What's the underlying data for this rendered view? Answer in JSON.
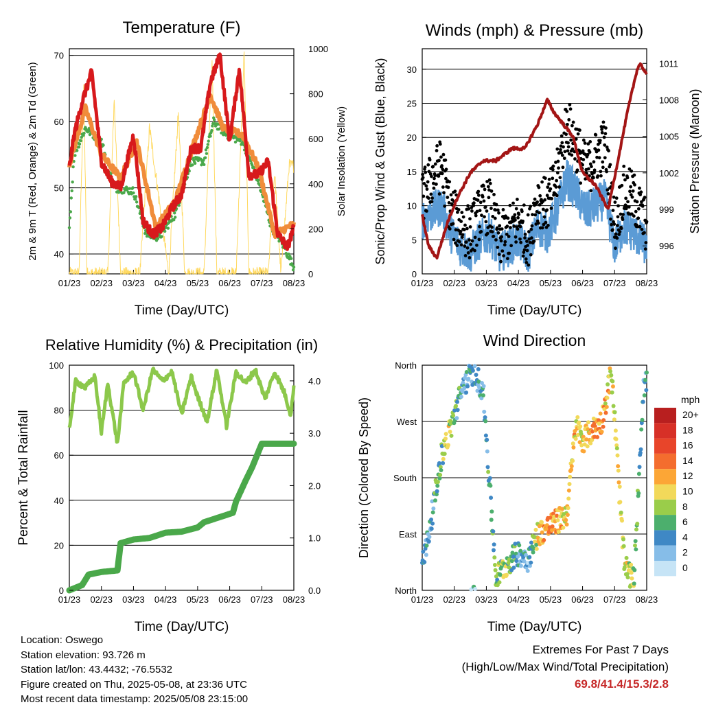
{
  "chart_data": [
    {
      "type": "line",
      "title": "Temperature (F)",
      "xlabel": "Time (Day/UTC)",
      "ylabel": "2m & 9m T (Red, Orange) & 2m Td (Green)",
      "y2label": "Solar Insolation (Yellow)",
      "xticks": [
        "01/23",
        "02/23",
        "03/23",
        "04/23",
        "05/23",
        "06/23",
        "07/23",
        "08/23"
      ],
      "ylim": [
        37,
        71
      ],
      "yticks": [
        40,
        50,
        60,
        70
      ],
      "y2lim": [
        0,
        1000
      ],
      "y2ticks": [
        0,
        200,
        400,
        600,
        800,
        1000
      ],
      "grid": true,
      "series": [
        {
          "name": "2m T",
          "color": "#d7191c",
          "x": [
            0,
            0.15,
            0.4,
            0.7,
            1.0,
            1.3,
            1.6,
            2.0,
            2.3,
            2.6,
            2.9,
            3.2,
            3.5,
            3.8,
            4.1,
            4.4,
            4.7,
            5.0,
            5.3,
            5.6,
            5.9,
            6.2,
            6.5,
            6.8,
            7.0
          ],
          "values": [
            53,
            58,
            63,
            67.5,
            54,
            51,
            50,
            58,
            45,
            43,
            44,
            47,
            49,
            56,
            56,
            66,
            70,
            57,
            68,
            52,
            52,
            54,
            43,
            41,
            44
          ]
        },
        {
          "name": "9m T",
          "color": "#f08c3a",
          "x": [
            0,
            0.5,
            1.0,
            1.6,
            2.1,
            2.7,
            3.3,
            3.9,
            4.4,
            4.8,
            5.4,
            5.9,
            6.4,
            7.0
          ],
          "values": [
            53.5,
            62,
            55,
            51.5,
            57,
            44,
            48,
            57,
            64,
            59,
            58,
            53,
            43,
            44.5
          ]
        },
        {
          "name": "2m Td",
          "color": "#4aa84a",
          "x": [
            0,
            0.15,
            0.5,
            1.0,
            1.4,
            2.0,
            2.4,
            2.8,
            3.3,
            3.8,
            4.2,
            4.5,
            4.9,
            5.4,
            5.9,
            6.3,
            6.6,
            7.0
          ],
          "values": [
            44,
            55,
            59,
            57,
            50,
            49.5,
            43,
            42.5,
            46,
            54,
            54,
            60,
            58,
            57,
            51,
            44,
            42,
            38
          ]
        },
        {
          "name": "Solar Insolation",
          "color": "#ffd54f",
          "axis": "y2",
          "x": [
            0.3,
            0.45,
            0.55,
            1.2,
            1.4,
            1.6,
            2.2,
            2.5,
            3.1,
            3.4,
            3.6,
            4.2,
            4.45,
            4.6,
            5.2,
            5.45,
            5.6,
            6.2,
            6.4,
            6.6,
            6.85
          ],
          "values": [
            0,
            820,
            0,
            0,
            780,
            0,
            0,
            650,
            0,
            720,
            0,
            0,
            950,
            0,
            0,
            980,
            0,
            0,
            450,
            0,
            480
          ]
        }
      ]
    },
    {
      "type": "scatter",
      "title": "Winds (mph) & Pressure (mb)",
      "xlabel": "Time (Day/UTC)",
      "ylabel": "Sonic/Prop Wind & Gust (Blue, Black)",
      "y2label": "Station Pressure (Maroon)",
      "xticks": [
        "01/23",
        "02/23",
        "03/23",
        "04/23",
        "05/23",
        "06/23",
        "07/23",
        "08/23"
      ],
      "ylim": [
        0,
        33
      ],
      "yticks": [
        0,
        5,
        10,
        15,
        20,
        25,
        30
      ],
      "y2lim": [
        993.7,
        1012.2
      ],
      "y2ticks": [
        996,
        999,
        1002,
        1005,
        1008,
        1011
      ],
      "grid": true,
      "series": [
        {
          "name": "Wind",
          "color": "#5b9bd5",
          "x": [
            0,
            0.3,
            0.6,
            0.9,
            1.2,
            1.5,
            1.8,
            2.1,
            2.4,
            2.7,
            3.0,
            3.3,
            3.6,
            3.9,
            4.2,
            4.5,
            4.8,
            5.1,
            5.4,
            5.7,
            6.0,
            6.3,
            6.6,
            7.0
          ],
          "values": [
            8,
            9,
            10,
            6,
            4,
            3,
            5,
            6,
            3,
            4,
            5,
            3,
            7,
            6,
            9,
            14,
            12,
            9,
            10,
            11,
            4,
            7,
            6,
            4
          ]
        },
        {
          "name": "Gust",
          "color": "#000000",
          "x": [
            0,
            0.3,
            0.6,
            0.9,
            1.2,
            1.5,
            1.8,
            2.1,
            2.4,
            2.7,
            3.0,
            3.3,
            3.6,
            3.9,
            4.2,
            4.5,
            4.8,
            5.1,
            5.4,
            5.7,
            6.0,
            6.3,
            6.6,
            7.0
          ],
          "values": [
            11,
            14,
            16,
            9,
            7,
            6,
            9,
            10,
            5,
            6,
            8,
            5,
            11,
            10,
            14,
            22,
            19,
            15,
            17,
            19,
            7,
            12,
            11,
            7
          ]
        },
        {
          "name": "Station Pressure",
          "color": "#a31515",
          "axis": "y2",
          "x": [
            0,
            0.2,
            0.45,
            0.8,
            1.1,
            1.5,
            1.9,
            2.3,
            2.8,
            3.2,
            3.6,
            3.9,
            4.1,
            4.4,
            4.7,
            5.0,
            5.4,
            5.8,
            6.1,
            6.4,
            6.7,
            6.8,
            7.0
          ],
          "values": [
            998.5,
            996,
            995,
            998,
            1000,
            1002,
            1003,
            1003,
            1004,
            1004,
            1006,
            1008,
            1007,
            1006,
            1005,
            1002,
            1001,
            999,
            1003,
            1007,
            1010.5,
            1011,
            1010
          ]
        }
      ]
    },
    {
      "type": "line",
      "title": "Relative Humidity (%) & Precipitation (in)",
      "xlabel": "Time (Day/UTC)",
      "ylabel": "Percent & Total Rainfall",
      "xticks": [
        "01/23",
        "02/23",
        "03/23",
        "04/23",
        "05/23",
        "06/23",
        "07/23",
        "08/23"
      ],
      "ylim": [
        0,
        100
      ],
      "yticks": [
        0,
        20,
        40,
        60,
        80,
        100
      ],
      "y2lim": [
        0,
        4.3
      ],
      "y2ticks": [
        "0.0",
        "1.0",
        "2.0",
        "3.0",
        "4.0"
      ],
      "grid": true,
      "series": [
        {
          "name": "Relative Humidity",
          "color": "#8cc84b",
          "x": [
            0,
            0.2,
            0.5,
            0.8,
            1.0,
            1.2,
            1.5,
            1.7,
            2.0,
            2.3,
            2.6,
            2.9,
            3.2,
            3.5,
            3.8,
            4.0,
            4.3,
            4.6,
            4.9,
            5.2,
            5.5,
            5.8,
            6.1,
            6.4,
            6.7,
            6.9,
            7.0
          ],
          "values": [
            72,
            93,
            90,
            95,
            70,
            92,
            65,
            92,
            97,
            80,
            98,
            93,
            97,
            78,
            95,
            86,
            75,
            98,
            73,
            97,
            92,
            98,
            85,
            97,
            88,
            78,
            90
          ]
        },
        {
          "name": "Total Rainfall",
          "color": "#4aa84a",
          "axis": "y2",
          "x": [
            0,
            0.4,
            0.6,
            1.0,
            1.5,
            1.6,
            2.0,
            2.5,
            3.0,
            3.5,
            4.0,
            4.2,
            4.8,
            5.1,
            5.2,
            5.5,
            5.7,
            6.0,
            6.5,
            7.0
          ],
          "values": [
            0,
            0.1,
            0.3,
            0.35,
            0.38,
            0.9,
            0.97,
            1.0,
            1.1,
            1.12,
            1.2,
            1.3,
            1.42,
            1.48,
            1.7,
            2.1,
            2.35,
            2.8,
            2.8,
            2.8
          ]
        }
      ]
    },
    {
      "type": "scatter",
      "title": "Wind Direction",
      "xlabel": "Time (Day/UTC)",
      "ylabel": "Direction (Colored By Speed)",
      "xticks": [
        "01/23",
        "02/23",
        "03/23",
        "04/23",
        "05/23",
        "06/23",
        "07/23",
        "08/23"
      ],
      "yticks": [
        "North",
        "East",
        "South",
        "West",
        "North"
      ],
      "ylim": [
        0,
        360
      ],
      "grid": true,
      "legend_title": "mph",
      "colorbar_labels": [
        "20+",
        "18",
        "16",
        "14",
        "12",
        "10",
        "8",
        "6",
        "4",
        "2",
        "0"
      ],
      "colorbar_colors": [
        "#b81f1f",
        "#d73027",
        "#e8452a",
        "#f46d2e",
        "#fca636",
        "#f2d95a",
        "#9acd4a",
        "#4caf6d",
        "#3f88c5",
        "#86bde8",
        "#c6e4f6"
      ],
      "series": [
        {
          "name": "Direction",
          "x": [
            0.1,
            0.4,
            0.6,
            0.8,
            1.0,
            1.3,
            1.6,
            1.9,
            2.3,
            2.6,
            3.0,
            3.3,
            3.6,
            3.9,
            4.2,
            4.5,
            4.8,
            5.0,
            5.3,
            5.6,
            5.9,
            6.3,
            6.6,
            6.9
          ],
          "values": [
            60,
            150,
            215,
            245,
            280,
            330,
            350,
            320,
            20,
            40,
            60,
            50,
            90,
            100,
            110,
            120,
            265,
            240,
            255,
            270,
            350,
            40,
            15,
            330
          ],
          "speeds": [
            4,
            5,
            6,
            10,
            6,
            4,
            3,
            4,
            6,
            8,
            4,
            3,
            10,
            14,
            12,
            10,
            11,
            9,
            12,
            12,
            10,
            10,
            8,
            4
          ]
        }
      ]
    }
  ],
  "info": {
    "location": "Location: Oswego",
    "elevation": "Station elevation: 93.726 m",
    "latlon": "Station lat/lon: 43.4432; -76.5532",
    "created": "Figure created on Thu, 2025-05-08, at 23:36 UTC",
    "timestamp": "Most recent data timestamp: 2025/05/08 23:15:00"
  },
  "extremes": {
    "title": "Extremes For Past 7 Days",
    "subtitle": "(High/Low/Max Wind/Total Precipitation)",
    "values": "69.8/41.4/15.3/2.8"
  }
}
